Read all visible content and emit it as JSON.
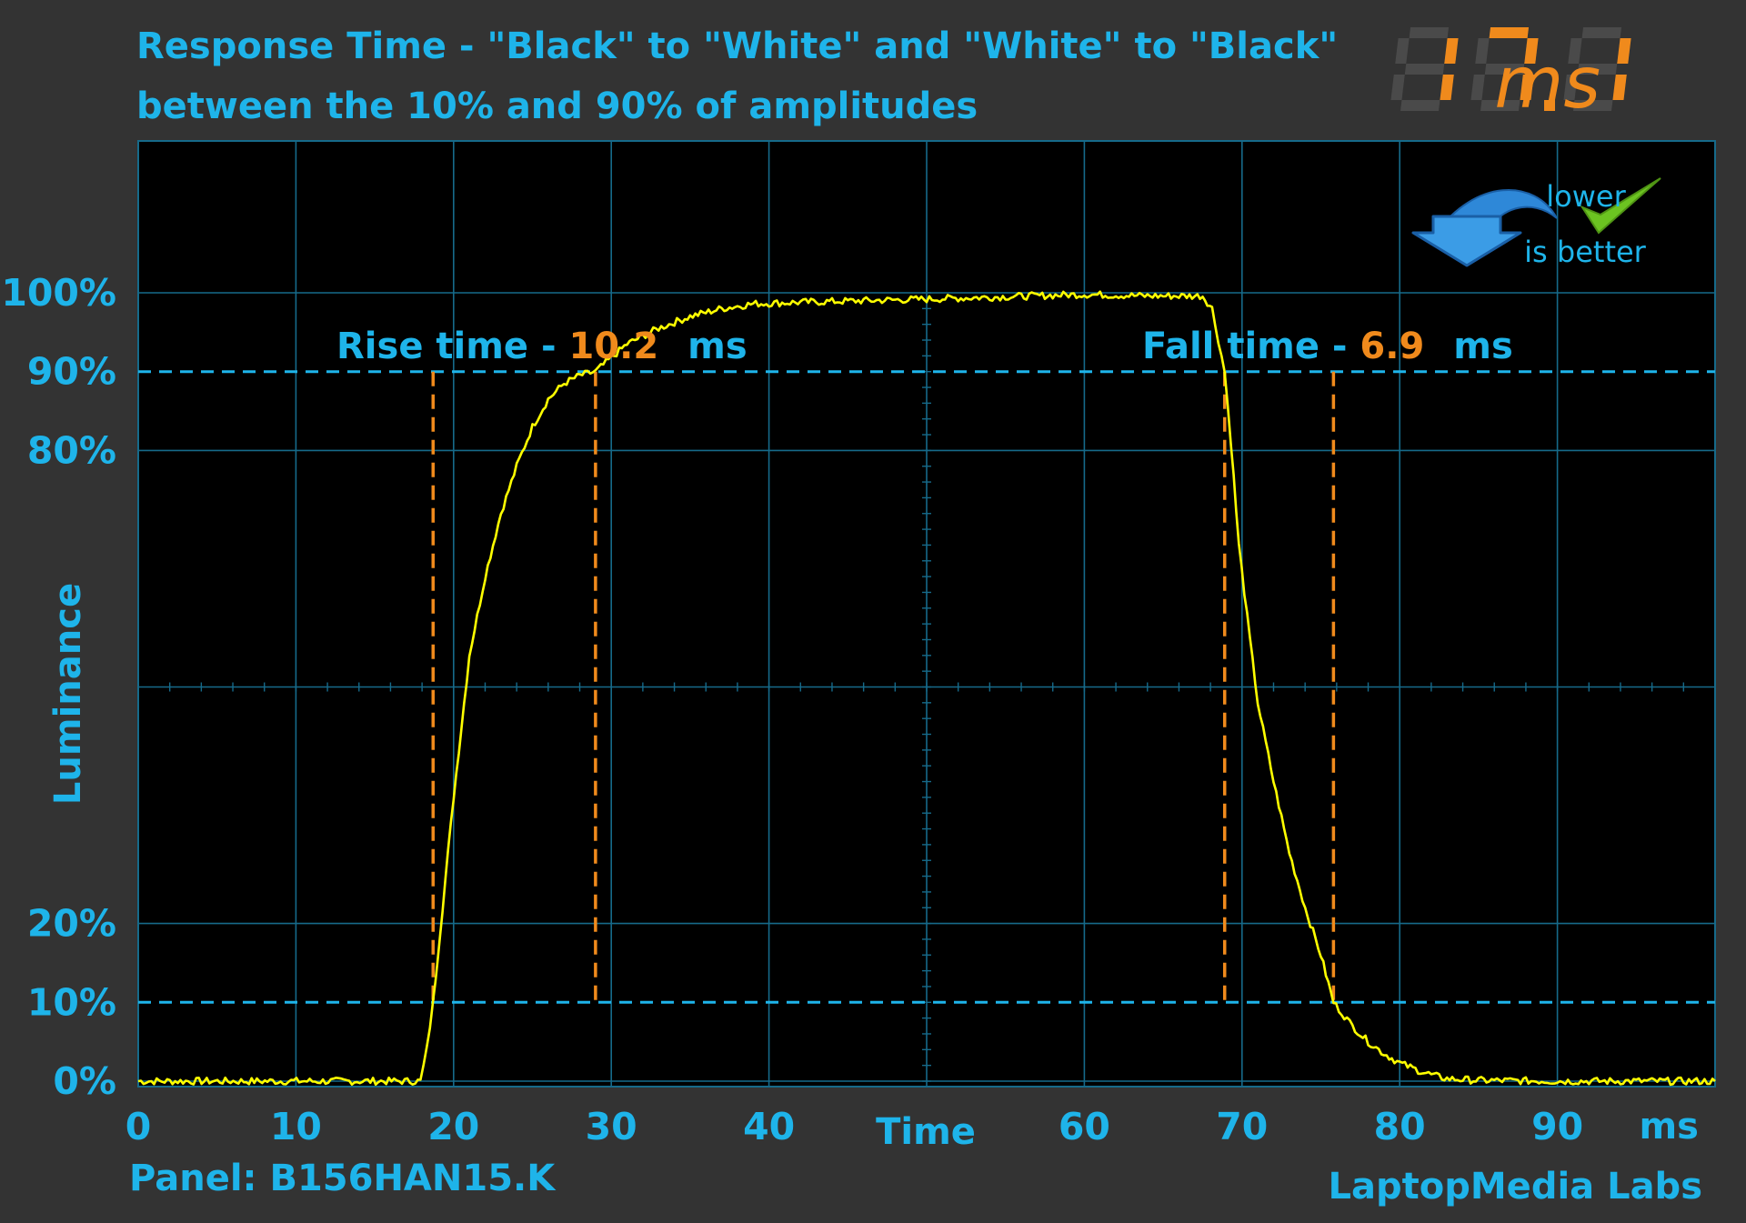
{
  "chart_data": {
    "type": "line",
    "title": "Response Time - \"Black\" to \"White\" and \"White\" to \"Black\"",
    "subtitle": "between the 10% and 90% of amplitudes",
    "display_value": "17.1",
    "display_unit": "ms",
    "xlabel": "Time",
    "x_unit": "ms",
    "ylabel": "Luminance",
    "xlim": [
      0,
      100
    ],
    "ylim": [
      0,
      100
    ],
    "x_ticks": [
      0,
      10,
      20,
      30,
      40,
      60,
      70,
      80,
      90
    ],
    "x_tick_labels": [
      "0",
      "10",
      "20",
      "30",
      "40",
      "60",
      "70",
      "80",
      "90"
    ],
    "y_ticks": [
      0,
      10,
      20,
      80,
      90,
      100
    ],
    "y_tick_labels": [
      "0%",
      "10%",
      "20%",
      "80%",
      "90%",
      "100%"
    ],
    "grid": true,
    "threshold_lines": [
      10,
      90
    ],
    "rise": {
      "label": "Rise time - ",
      "value": "10.2",
      "unit": "ms",
      "start_ms": 18.7,
      "end_ms": 29.0
    },
    "fall": {
      "label": "Fall time - ",
      "value": "6.9",
      "unit": "ms",
      "start_ms": 68.9,
      "end_ms": 75.8
    },
    "series": [
      {
        "x": [
          0,
          17.9,
          18.3,
          18.7,
          19.3,
          20,
          21,
          22,
          23,
          24,
          25,
          26,
          27,
          28,
          29,
          31,
          33,
          35,
          37,
          39,
          42,
          46,
          50,
          55,
          60,
          64,
          67.5,
          68.1,
          68.5,
          68.9,
          69.3,
          69.8,
          70.5,
          71,
          72,
          73,
          74,
          75,
          75.8,
          77,
          78,
          79,
          80,
          81,
          82,
          83,
          85,
          90,
          100
        ],
        "y": [
          0,
          0,
          4,
          10,
          22,
          36,
          54,
          64,
          72,
          78,
          83,
          86.5,
          88.5,
          89.5,
          90,
          93.5,
          95.5,
          97,
          98,
          98.6,
          98.8,
          99,
          99.2,
          99.5,
          99.8,
          99.6,
          99.6,
          98,
          94,
          90,
          81,
          68,
          56,
          48,
          38,
          29,
          22,
          16,
          10,
          7,
          5,
          3.5,
          2.3,
          1.5,
          0.8,
          0.3,
          0.1,
          0,
          0
        ]
      }
    ]
  },
  "badge": {
    "line1": "lower",
    "line2": "is better",
    "arrow_color": "#2e88d8",
    "check_color": "#6cc321"
  },
  "footer": {
    "panel": "Panel: B156HAN15.K",
    "brand": "LaptopMedia Labs"
  },
  "colors": {
    "background": "#333333",
    "plot_background": "#000000",
    "text": "#1eb4ea",
    "accent": "#f08a1c",
    "signal": "#ffff00",
    "grid": "#166a8a"
  }
}
